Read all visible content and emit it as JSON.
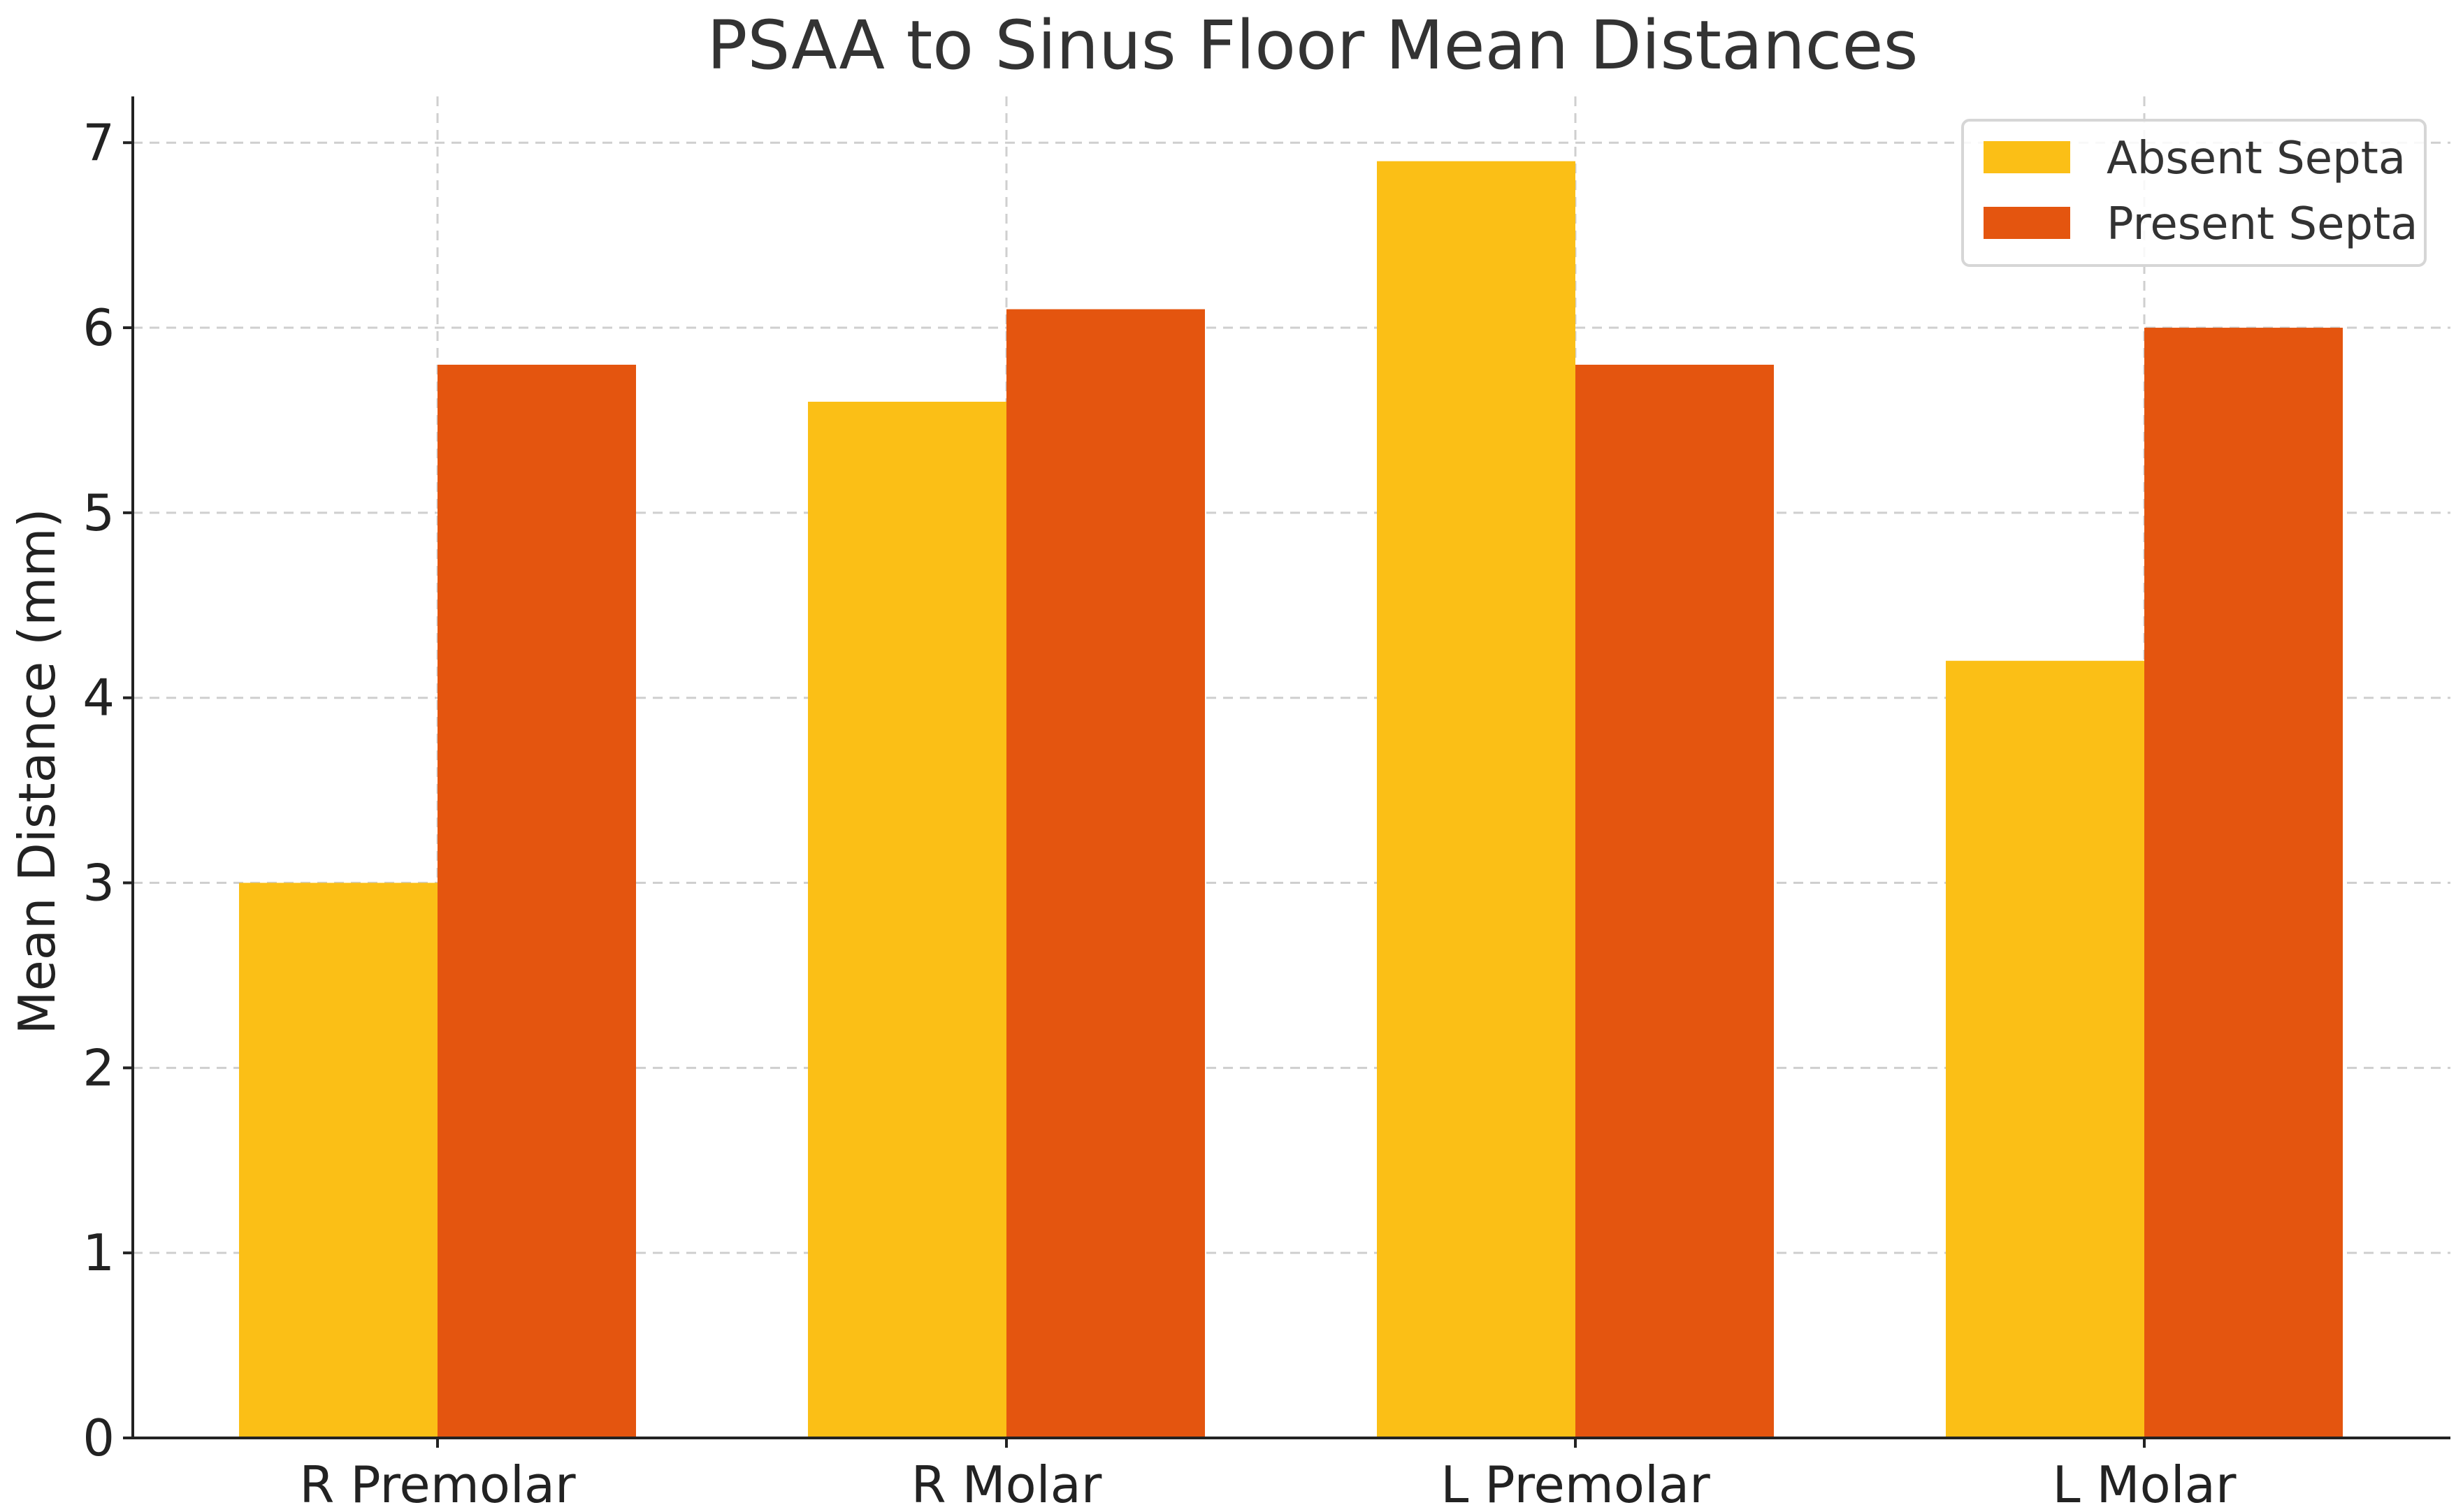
{
  "chart_data": {
    "type": "bar",
    "title": "PSAA to Sinus Floor Mean Distances",
    "xlabel": "",
    "ylabel": "Mean Distance (mm)",
    "categories": [
      "R Premolar",
      "R Molar",
      "L Premolar",
      "L Molar"
    ],
    "series": [
      {
        "name": "Absent Septa",
        "values": [
          3.0,
          5.6,
          6.9,
          4.2
        ],
        "color": "#FBBF16"
      },
      {
        "name": "Present Septa",
        "values": [
          5.8,
          6.1,
          5.8,
          6.0
        ],
        "color": "#E4550F"
      }
    ],
    "ylim": [
      0,
      7.25
    ],
    "yticks": [
      0,
      1,
      2,
      3,
      4,
      5,
      6,
      7
    ],
    "grid": true,
    "legend_position": "top-right"
  }
}
